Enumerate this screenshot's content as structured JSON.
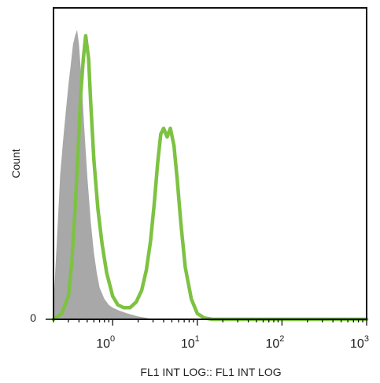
{
  "chart_data": {
    "type": "area",
    "title": "",
    "xlabel": "FL1 INT LOG:: FL1 INT LOG",
    "ylabel": "Count",
    "x_scale": "log",
    "xlim": [
      0.2,
      1000
    ],
    "ylim": [
      0,
      1.0
    ],
    "grid": false,
    "legend": "none",
    "x_ticks": [
      {
        "base": "10",
        "exp": "0"
      },
      {
        "base": "10",
        "exp": "1"
      },
      {
        "base": "10",
        "exp": "2"
      },
      {
        "base": "10",
        "exp": "3"
      }
    ],
    "y_ticks": [
      "0"
    ],
    "series": [
      {
        "style": "filled",
        "color": "#a8a8a8",
        "x": [
          0.2,
          0.22,
          0.24,
          0.26,
          0.28,
          0.3,
          0.32,
          0.34,
          0.36,
          0.38,
          0.4,
          0.43,
          0.46,
          0.5,
          0.55,
          0.6,
          0.65,
          0.7,
          0.8,
          0.9,
          1.0,
          1.2,
          1.5,
          2.0,
          2.5,
          3.0
        ],
        "y": [
          0.05,
          0.28,
          0.5,
          0.62,
          0.72,
          0.81,
          0.88,
          0.95,
          0.98,
          1.0,
          0.95,
          0.82,
          0.67,
          0.5,
          0.34,
          0.23,
          0.16,
          0.11,
          0.07,
          0.05,
          0.04,
          0.03,
          0.02,
          0.01,
          0.005,
          0.0
        ]
      },
      {
        "style": "line",
        "color": "#7dc242",
        "x": [
          0.2,
          0.25,
          0.3,
          0.33,
          0.36,
          0.39,
          0.42,
          0.45,
          0.48,
          0.52,
          0.55,
          0.6,
          0.67,
          0.75,
          0.85,
          1.0,
          1.15,
          1.35,
          1.6,
          1.9,
          2.2,
          2.5,
          2.8,
          3.1,
          3.4,
          3.7,
          4.0,
          4.4,
          4.8,
          5.3,
          5.8,
          6.4,
          7.2,
          8.5,
          10.0,
          12.0,
          15.0,
          1000.0
        ],
        "y": [
          0.0,
          0.02,
          0.08,
          0.2,
          0.38,
          0.58,
          0.78,
          0.9,
          0.98,
          0.9,
          0.75,
          0.55,
          0.38,
          0.26,
          0.16,
          0.08,
          0.05,
          0.04,
          0.04,
          0.06,
          0.1,
          0.17,
          0.27,
          0.4,
          0.54,
          0.64,
          0.66,
          0.63,
          0.66,
          0.6,
          0.48,
          0.33,
          0.18,
          0.07,
          0.02,
          0.005,
          0.0,
          0.0
        ]
      }
    ]
  }
}
